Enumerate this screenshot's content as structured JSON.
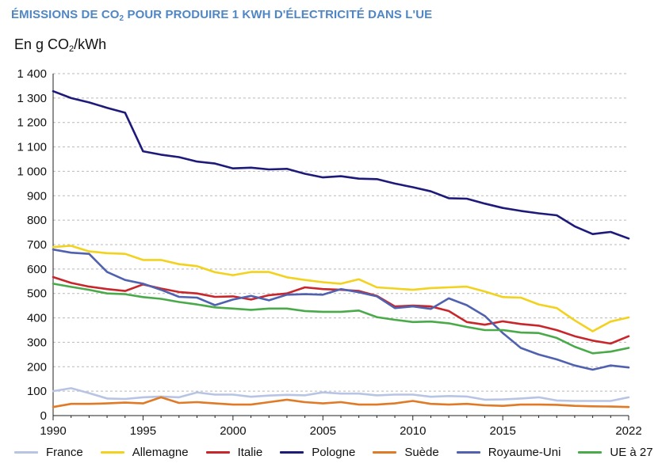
{
  "title": {
    "prefix": "ÉMISSIONS DE CO",
    "subscript": "2",
    "suffix": " POUR PRODUIRE 1 KWH D'ÉLECTRICITÉ DANS L'UE"
  },
  "units": {
    "prefix": "En g CO",
    "subscript": "2",
    "suffix": "/kWh"
  },
  "chart_data": {
    "type": "line",
    "title": "ÉMISSIONS DE CO2 POUR PRODUIRE 1 KWH D'ÉLECTRICITÉ DANS L'UE",
    "ylabel": "En g CO2/kWh",
    "xlabel": "",
    "xlim": [
      1990,
      2022
    ],
    "ylim": [
      0,
      1400
    ],
    "grid": true,
    "legend_position": "bottom",
    "x_tick_labels": [
      "1990",
      "1995",
      "2000",
      "2005",
      "2010",
      "2015",
      "2022"
    ],
    "x_tick_values": [
      1990,
      1995,
      2000,
      2005,
      2010,
      2015,
      2022
    ],
    "y_tick_labels": [
      "0",
      "100",
      "200",
      "300",
      "400",
      "500",
      "600",
      "700",
      "800",
      "900",
      "1 000",
      "1 100",
      "1 200",
      "1 300",
      "1 400"
    ],
    "y_tick_values": [
      0,
      100,
      200,
      300,
      400,
      500,
      600,
      700,
      800,
      900,
      1000,
      1100,
      1200,
      1300,
      1400
    ],
    "x": [
      1990,
      1991,
      1992,
      1993,
      1994,
      1995,
      1996,
      1997,
      1998,
      1999,
      2000,
      2001,
      2002,
      2003,
      2004,
      2005,
      2006,
      2007,
      2008,
      2009,
      2010,
      2011,
      2012,
      2013,
      2014,
      2015,
      2016,
      2017,
      2018,
      2019,
      2020,
      2021,
      2022
    ],
    "series": [
      {
        "name": "France",
        "color": "#b8c4e4",
        "values": [
          100,
          112,
          92,
          70,
          68,
          75,
          78,
          75,
          95,
          86,
          86,
          77,
          82,
          85,
          83,
          95,
          90,
          90,
          83,
          86,
          86,
          77,
          80,
          78,
          65,
          66,
          70,
          75,
          62,
          60,
          60,
          60,
          75
        ]
      },
      {
        "name": "Allemagne",
        "color": "#f2d21c",
        "values": [
          690,
          695,
          672,
          665,
          662,
          637,
          637,
          620,
          612,
          587,
          575,
          588,
          588,
          566,
          555,
          546,
          540,
          558,
          525,
          520,
          515,
          522,
          525,
          528,
          508,
          485,
          483,
          455,
          440,
          390,
          345,
          385,
          402
        ]
      },
      {
        "name": "Italie",
        "color": "#c9262b",
        "values": [
          567,
          543,
          528,
          518,
          510,
          537,
          520,
          506,
          500,
          486,
          488,
          475,
          493,
          500,
          525,
          518,
          515,
          510,
          490,
          447,
          450,
          447,
          428,
          383,
          372,
          386,
          375,
          368,
          350,
          325,
          307,
          295,
          325
        ]
      },
      {
        "name": "Pologne",
        "color": "#1d1a7a",
        "values": [
          1328,
          1300,
          1282,
          1260,
          1240,
          1082,
          1068,
          1058,
          1040,
          1032,
          1012,
          1015,
          1008,
          1010,
          990,
          975,
          980,
          970,
          968,
          950,
          935,
          918,
          890,
          888,
          868,
          850,
          838,
          828,
          820,
          775,
          743,
          752,
          725
        ]
      },
      {
        "name": "Suède",
        "color": "#e07a26",
        "values": [
          35,
          48,
          48,
          50,
          53,
          50,
          75,
          52,
          55,
          50,
          45,
          45,
          55,
          65,
          55,
          50,
          55,
          45,
          45,
          50,
          60,
          48,
          45,
          48,
          42,
          40,
          45,
          45,
          44,
          40,
          38,
          37,
          35
        ]
      },
      {
        "name": "Royaume-Uni",
        "color": "#5061b0",
        "values": [
          680,
          667,
          662,
          588,
          555,
          540,
          515,
          486,
          483,
          452,
          475,
          490,
          472,
          495,
          497,
          495,
          518,
          505,
          488,
          440,
          447,
          437,
          480,
          452,
          408,
          338,
          277,
          250,
          230,
          205,
          188,
          205,
          197
        ]
      },
      {
        "name": "UE à 27",
        "color": "#4aaa4a",
        "values": [
          540,
          527,
          515,
          500,
          497,
          485,
          478,
          465,
          455,
          443,
          438,
          433,
          438,
          438,
          428,
          425,
          425,
          430,
          403,
          392,
          383,
          385,
          378,
          363,
          350,
          350,
          340,
          338,
          318,
          282,
          255,
          262,
          277
        ]
      }
    ]
  }
}
